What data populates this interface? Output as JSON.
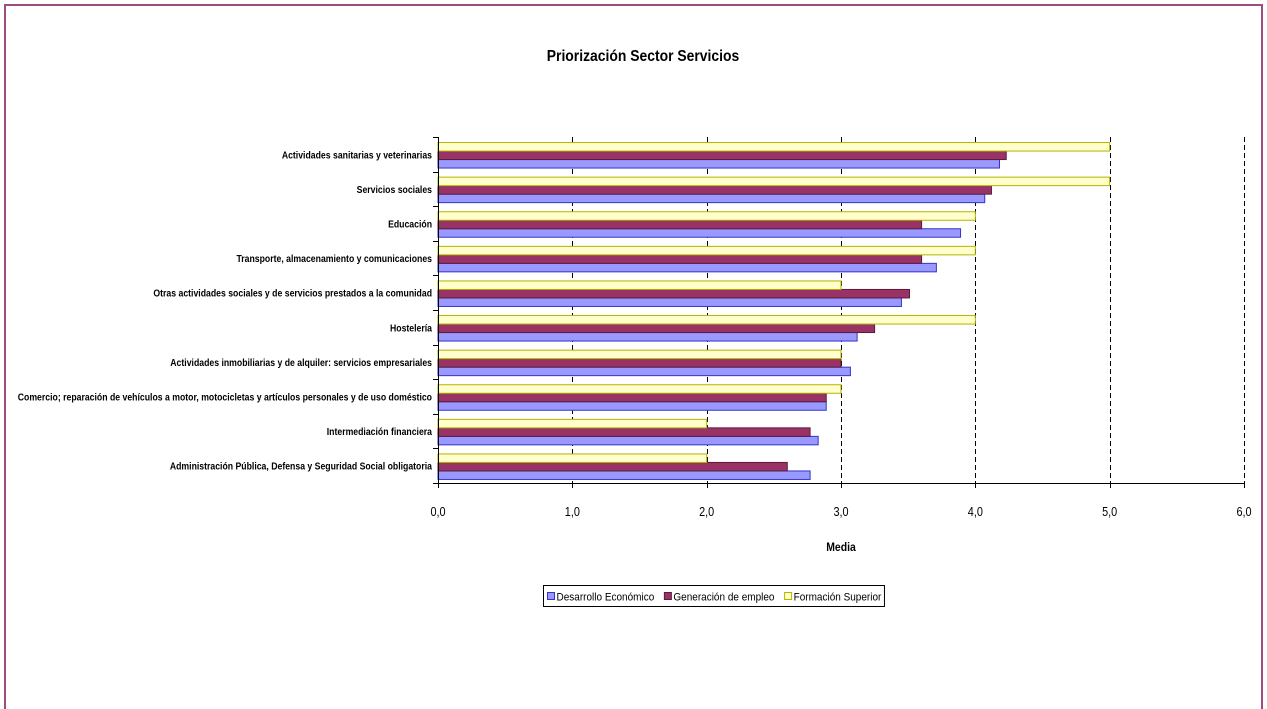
{
  "frame": {
    "border_color": "#9e4d7f"
  },
  "chart_data": {
    "type": "bar",
    "orientation": "horizontal",
    "title": "Priorización Sector Servicios",
    "xlabel": "Media",
    "ylabel": "",
    "xlim": [
      0,
      6
    ],
    "xticks": [
      0,
      1,
      2,
      3,
      4,
      5,
      6
    ],
    "xtick_labels": [
      "0,0",
      "1,0",
      "2,0",
      "3,0",
      "4,0",
      "5,0",
      "6,0"
    ],
    "grid": true,
    "legend_position": "bottom",
    "categories": [
      "Actividades sanitarias y veterinarias",
      "Servicios sociales",
      "Educación",
      "Transporte, almacenamiento y comunicaciones",
      "Otras actividades sociales y de servicios prestados a la comunidad",
      "Hostelería",
      "Actividades inmobiliarias y de alquiler: servicios empresariales",
      "Comercio; reparación de vehículos a motor, motocicletas y artículos personales y de uso doméstico",
      "Intermediación financiera",
      "Administración Pública, Defensa y Seguridad Social obligatoria"
    ],
    "series": [
      {
        "name": "Desarrollo Económico",
        "color": "#9999ff",
        "edge_color": "#3333cc",
        "values": [
          4.18,
          4.07,
          3.89,
          3.71,
          3.45,
          3.12,
          3.07,
          2.89,
          2.83,
          2.77
        ]
      },
      {
        "name": "Generación de empleo",
        "color": "#993366",
        "edge_color": "#5c1a3d",
        "values": [
          4.23,
          4.12,
          3.6,
          3.6,
          3.51,
          3.25,
          3.0,
          2.89,
          2.77,
          2.6
        ]
      },
      {
        "name": "Formación Superior",
        "color": "#ffffcc",
        "edge_color": "#b3b300",
        "values": [
          5,
          5,
          4,
          4,
          3,
          4,
          3,
          3,
          2,
          2
        ]
      }
    ]
  }
}
